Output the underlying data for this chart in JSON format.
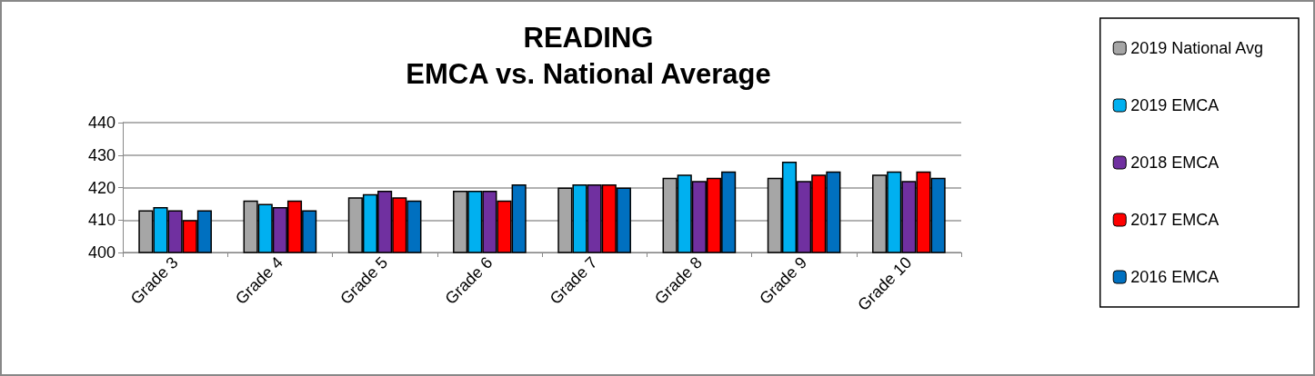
{
  "chart_data": {
    "type": "bar",
    "title": "READING\nEMCA vs. National Average",
    "categories": [
      "Grade 3",
      "Grade 4",
      "Grade 5",
      "Grade 6",
      "Grade 7",
      "Grade 8",
      "Grade 9",
      "Grade 10"
    ],
    "series": [
      {
        "name": "2019 National Avg",
        "color": "#a6a6a6",
        "values": [
          413,
          416,
          417,
          419,
          420,
          423,
          423,
          424
        ]
      },
      {
        "name": "2019 EMCA",
        "color": "#00b0f0",
        "values": [
          414,
          415,
          418,
          419,
          421,
          424,
          428,
          425
        ]
      },
      {
        "name": "2018 EMCA",
        "color": "#7030a0",
        "values": [
          413,
          414,
          419,
          419,
          421,
          422,
          422,
          422
        ]
      },
      {
        "name": "2017 EMCA",
        "color": "#ff0000",
        "values": [
          410,
          416,
          417,
          416,
          421,
          423,
          424,
          425
        ]
      },
      {
        "name": "2016 EMCA",
        "color": "#0070c0",
        "values": [
          413,
          413,
          416,
          421,
          420,
          425,
          425,
          423
        ]
      }
    ],
    "ylim": [
      400,
      440
    ],
    "yticks": [
      400,
      410,
      420,
      430,
      440
    ],
    "grid": "y",
    "legend": "right"
  }
}
